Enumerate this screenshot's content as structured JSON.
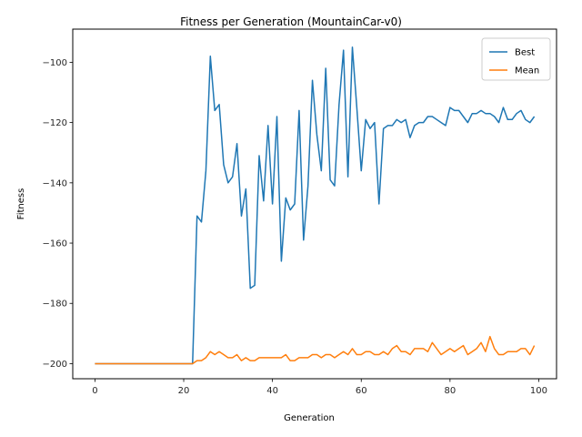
{
  "chart_data": {
    "type": "line",
    "title": "Fitness per Generation (MountainCar-v0)",
    "xlabel": "Generation",
    "ylabel": "Fitness",
    "xlim": [
      -5,
      104
    ],
    "ylim": [
      -205,
      -89
    ],
    "xticks": [
      0,
      20,
      40,
      60,
      80,
      100
    ],
    "yticks": [
      -200,
      -180,
      -160,
      -140,
      -120,
      -100
    ],
    "grid": false,
    "legend_position": "top-right",
    "series": [
      {
        "name": "Best",
        "color": "#1f77b4",
        "x": [
          0,
          1,
          2,
          3,
          4,
          5,
          6,
          7,
          8,
          9,
          10,
          11,
          12,
          13,
          14,
          15,
          16,
          17,
          18,
          19,
          20,
          21,
          22,
          23,
          24,
          25,
          26,
          27,
          28,
          29,
          30,
          31,
          32,
          33,
          34,
          35,
          36,
          37,
          38,
          39,
          40,
          41,
          42,
          43,
          44,
          45,
          46,
          47,
          48,
          49,
          50,
          51,
          52,
          53,
          54,
          55,
          56,
          57,
          58,
          59,
          60,
          61,
          62,
          63,
          64,
          65,
          66,
          67,
          68,
          69,
          70,
          71,
          72,
          73,
          74,
          75,
          76,
          77,
          78,
          79,
          80,
          81,
          82,
          83,
          84,
          85,
          86,
          87,
          88,
          89,
          90,
          91,
          92,
          93,
          94,
          95,
          96,
          97,
          98,
          99
        ],
        "y": [
          -200,
          -200,
          -200,
          -200,
          -200,
          -200,
          -200,
          -200,
          -200,
          -200,
          -200,
          -200,
          -200,
          -200,
          -200,
          -200,
          -200,
          -200,
          -200,
          -200,
          -200,
          -200,
          -200,
          -151,
          -153,
          -136,
          -98,
          -116,
          -114,
          -134,
          -140,
          -138,
          -127,
          -151,
          -142,
          -175,
          -174,
          -131,
          -146,
          -121,
          -147,
          -118,
          -166,
          -145,
          -149,
          -147,
          -116,
          -159,
          -141,
          -106,
          -124,
          -136,
          -102,
          -139,
          -141,
          -114,
          -96,
          -138,
          -95,
          -115,
          -136,
          -119,
          -122,
          -120,
          -147,
          -122,
          -121,
          -121,
          -119,
          -120,
          -119,
          -125,
          -121,
          -120,
          -120,
          -118,
          -118,
          -119,
          -120,
          -121,
          -115,
          -116,
          -116,
          -118,
          -120,
          -117,
          -117,
          -116,
          -117,
          -117,
          -118,
          -120,
          -115,
          -119,
          -119,
          -117,
          -116,
          -119,
          -120,
          -118
        ]
      },
      {
        "name": "Mean",
        "color": "#ff7f0e",
        "x": [
          0,
          1,
          2,
          3,
          4,
          5,
          6,
          7,
          8,
          9,
          10,
          11,
          12,
          13,
          14,
          15,
          16,
          17,
          18,
          19,
          20,
          21,
          22,
          23,
          24,
          25,
          26,
          27,
          28,
          29,
          30,
          31,
          32,
          33,
          34,
          35,
          36,
          37,
          38,
          39,
          40,
          41,
          42,
          43,
          44,
          45,
          46,
          47,
          48,
          49,
          50,
          51,
          52,
          53,
          54,
          55,
          56,
          57,
          58,
          59,
          60,
          61,
          62,
          63,
          64,
          65,
          66,
          67,
          68,
          69,
          70,
          71,
          72,
          73,
          74,
          75,
          76,
          77,
          78,
          79,
          80,
          81,
          82,
          83,
          84,
          85,
          86,
          87,
          88,
          89,
          90,
          91,
          92,
          93,
          94,
          95,
          96,
          97,
          98,
          99
        ],
        "y": [
          -200,
          -200,
          -200,
          -200,
          -200,
          -200,
          -200,
          -200,
          -200,
          -200,
          -200,
          -200,
          -200,
          -200,
          -200,
          -200,
          -200,
          -200,
          -200,
          -200,
          -200,
          -200,
          -200,
          -199,
          -199,
          -198,
          -196,
          -197,
          -196,
          -197,
          -198,
          -198,
          -197,
          -199,
          -198,
          -199,
          -199,
          -198,
          -198,
          -198,
          -198,
          -198,
          -198,
          -197,
          -199,
          -199,
          -198,
          -198,
          -198,
          -197,
          -197,
          -198,
          -197,
          -197,
          -198,
          -197,
          -196,
          -197,
          -195,
          -197,
          -197,
          -196,
          -196,
          -197,
          -197,
          -196,
          -197,
          -195,
          -194,
          -196,
          -196,
          -197,
          -195,
          -195,
          -195,
          -196,
          -193,
          -195,
          -197,
          -196,
          -195,
          -196,
          -195,
          -194,
          -197,
          -196,
          -195,
          -193,
          -196,
          -191,
          -195,
          -197,
          -197,
          -196,
          -196,
          -196,
          -195,
          -195,
          -197,
          -194
        ]
      }
    ]
  }
}
